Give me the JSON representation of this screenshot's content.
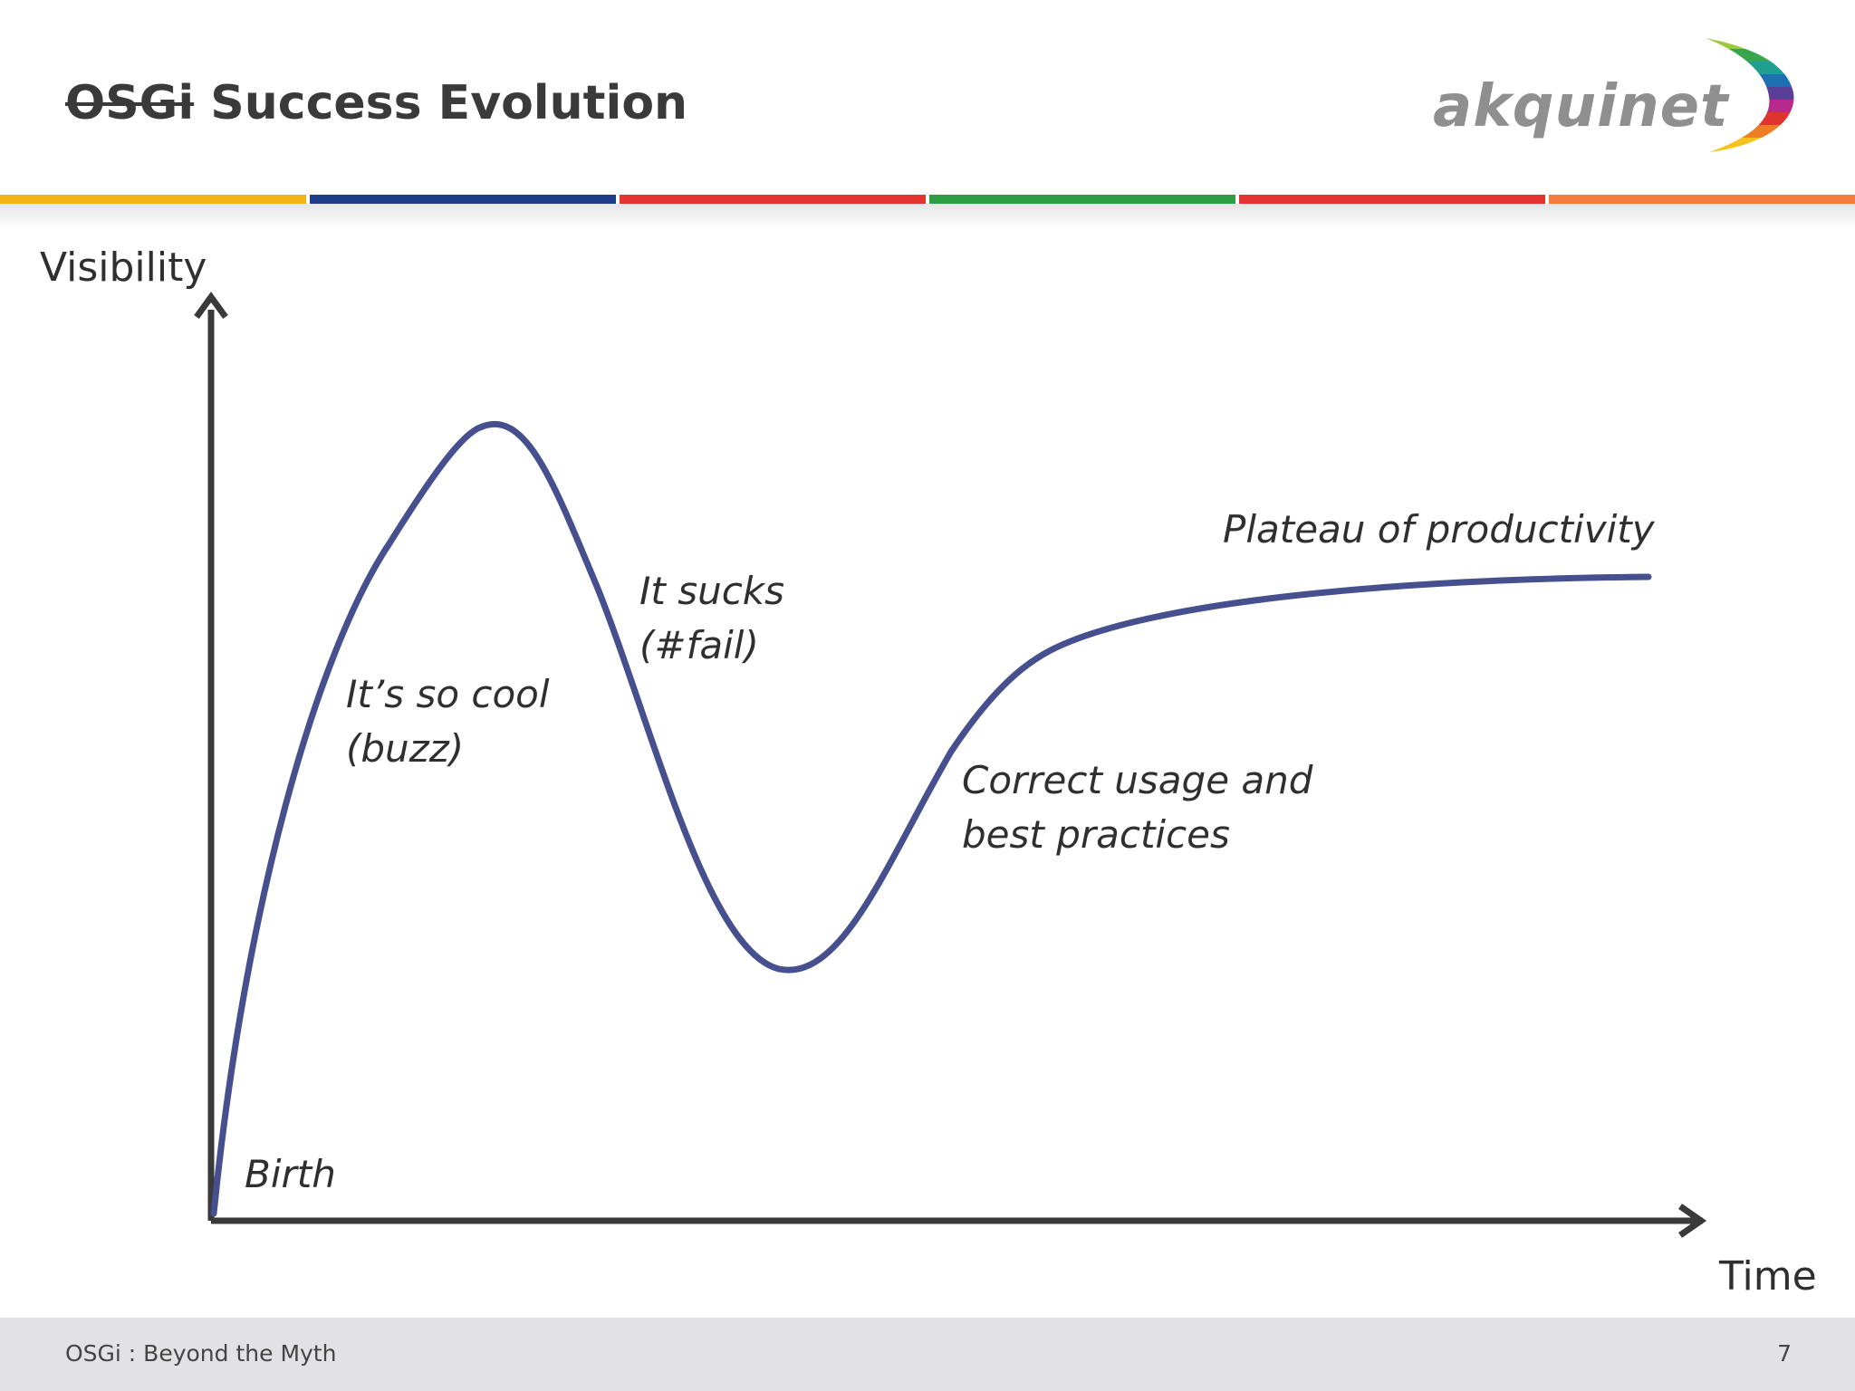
{
  "slide": {
    "title_struck": "OSGi",
    "title_rest": " Success Evolution",
    "logo_text": "akquinet",
    "footer_text": "OSGi : Beyond the Myth",
    "page_number": "7"
  },
  "color_bar": {
    "colors": [
      "#f2b318",
      "#1f3c88",
      "#e3342f",
      "#2e9e44",
      "#e3342f",
      "#f47c3c"
    ]
  },
  "diagram": {
    "y_axis_label": "Visibility",
    "x_axis_label": "Time",
    "curve_color": "#46508f",
    "stages": {
      "birth": "Birth",
      "cool_line1": "It’s so cool",
      "cool_line2": "(buzz)",
      "sucks_line1": "It sucks",
      "sucks_line2": "(#fail)",
      "correct_line1": "Correct usage and",
      "correct_line2": "best practices",
      "plateau": "Plateau of productivity"
    }
  }
}
